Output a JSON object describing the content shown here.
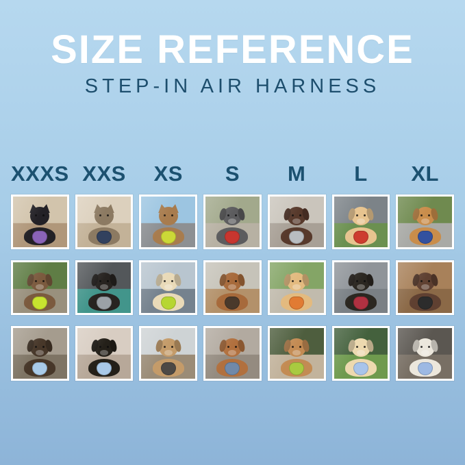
{
  "header": {
    "title": "SIZE REFERENCE",
    "subtitle": "STEP-IN AIR HARNESS"
  },
  "colors": {
    "background_top": "#b6d8ef",
    "background_bottom": "#8db4d8",
    "title_text": "#ffffff",
    "subtitle_text": "#1d4e6d",
    "size_label_text": "#1c5170",
    "photo_frame": "#ffffff"
  },
  "grid": {
    "columns": [
      {
        "label": "XXXS",
        "photos": [
          {
            "animal": "cat",
            "desc": "Black kitten in a purple harness indoors",
            "fur": "#232126",
            "harness": "#8a63b8",
            "sky": "#d2c4ac",
            "ground": "#b0977a"
          },
          {
            "animal": "dog",
            "desc": "Scruffy brown dog in a neon yellow harness in the garden",
            "fur": "#7b5a3e",
            "harness": "#c8e32f",
            "sky": "#5f7d45",
            "ground": "#99907d"
          },
          {
            "animal": "dog",
            "desc": "Yorkie puppy in a light blue harness on a sunny sidewalk",
            "fur": "#473729",
            "harness": "#a9cbe9",
            "sky": "#a59c8e",
            "ground": "#7e7464"
          }
        ]
      },
      {
        "label": "XXS",
        "photos": [
          {
            "animal": "cat",
            "desc": "Tabby cat in a navy harness by the window",
            "fur": "#8c7a62",
            "harness": "#32415e",
            "sky": "#dcd0bd",
            "ground": "#c3b298"
          },
          {
            "animal": "dog",
            "desc": "Black puppy in a grey harness on a teal blanket",
            "fur": "#272320",
            "harness": "#9ba1a7",
            "sky": "#53575a",
            "ground": "#42958b"
          },
          {
            "animal": "dog",
            "desc": "Black and tan dachshund in a light blue harness on the couch",
            "fur": "#242019",
            "harness": "#a9c9e8",
            "sky": "#d8cdc2",
            "ground": "#b7a899"
          }
        ]
      },
      {
        "label": "XS",
        "photos": [
          {
            "animal": "cat",
            "desc": "Tabby cat in a lime green harness riding in the car",
            "fur": "#a87c4e",
            "harness": "#ccd837",
            "sky": "#9cc5e1",
            "ground": "#8d9093"
          },
          {
            "animal": "dog",
            "desc": "Cream long-haired dachshund in a neon green harness on the dock",
            "fur": "#e9dab8",
            "harness": "#b7d632",
            "sky": "#b8c5cf",
            "ground": "#75828e"
          },
          {
            "animal": "dog",
            "desc": "Apricot poodle puppy in a dark grey harness on the deck",
            "fur": "#c49b69",
            "harness": "#4d4945",
            "sky": "#ced3d5",
            "ground": "#9b8c77"
          }
        ]
      },
      {
        "label": "S",
        "photos": [
          {
            "animal": "dog",
            "desc": "Grey French bulldog in a red harness on a sunny path",
            "fur": "#5c5c5e",
            "harness": "#c8362f",
            "sky": "#a2a98c",
            "ground": "#b7b1a3"
          },
          {
            "animal": "dog",
            "desc": "Long-haired dachshund lounging on a boardwalk",
            "fur": "#a76a3b",
            "harness": "#4a392b",
            "sky": "#c6c3b9",
            "ground": "#b3916a"
          },
          {
            "animal": "dog",
            "desc": "Red dachshund in a slate blue harness on the patio",
            "fur": "#b1703e",
            "harness": "#7089a9",
            "sky": "#b2aaa0",
            "ground": "#948b80"
          }
        ]
      },
      {
        "label": "M",
        "photos": [
          {
            "animal": "dog",
            "desc": "Chocolate long-haired dog in a grey harness on concrete",
            "fur": "#57392b",
            "harness": "#b9bdc1",
            "sky": "#cac5bc",
            "ground": "#a8a096"
          },
          {
            "animal": "dog",
            "desc": "Golden retriever puppy in an orange harness on the patio",
            "fur": "#e3ba7f",
            "harness": "#e17b33",
            "sky": "#84a566",
            "ground": "#c1bbad"
          },
          {
            "animal": "dog",
            "desc": "Goldendoodle in a lime green harness on the sidewalk",
            "fur": "#c38b53",
            "harness": "#a9ca40",
            "sky": "#4e5e3e",
            "ground": "#c2b39c"
          }
        ]
      },
      {
        "label": "L",
        "photos": [
          {
            "animal": "dog",
            "desc": "Shiba Inu with a ball wearing a red harness in the park",
            "fur": "#e7c48f",
            "harness": "#cd3c2f",
            "sky": "#7c8388",
            "ground": "#6b9050"
          },
          {
            "animal": "dog",
            "desc": "Black and tan dog in a harness inside a play tunnel",
            "fur": "#2b2721",
            "harness": "#b13141",
            "sky": "#8f9499",
            "ground": "#7a8085"
          },
          {
            "animal": "dog",
            "desc": "Cream golden puppy in a light blue harness on the lawn",
            "fur": "#edd9af",
            "harness": "#a8c4ea",
            "sky": "#44613d",
            "ground": "#6f9a4e"
          }
        ]
      },
      {
        "label": "XL",
        "photos": [
          {
            "animal": "dog",
            "desc": "Golden retriever in a blue harness on a garden path",
            "fur": "#c98d4b",
            "harness": "#33519f",
            "sky": "#6f8a4f",
            "ground": "#a9aaa6"
          },
          {
            "animal": "dog",
            "desc": "Brown and white dog in a black harness on the deck",
            "fur": "#5f4031",
            "harness": "#2c2c2c",
            "sky": "#a8815a",
            "ground": "#8b6947"
          },
          {
            "animal": "dog",
            "desc": "White dog in a periwinkle harness on an evening walk",
            "fur": "#ece7dc",
            "harness": "#9db9e3",
            "sky": "#5b5751",
            "ground": "#786f64"
          }
        ]
      }
    ]
  }
}
